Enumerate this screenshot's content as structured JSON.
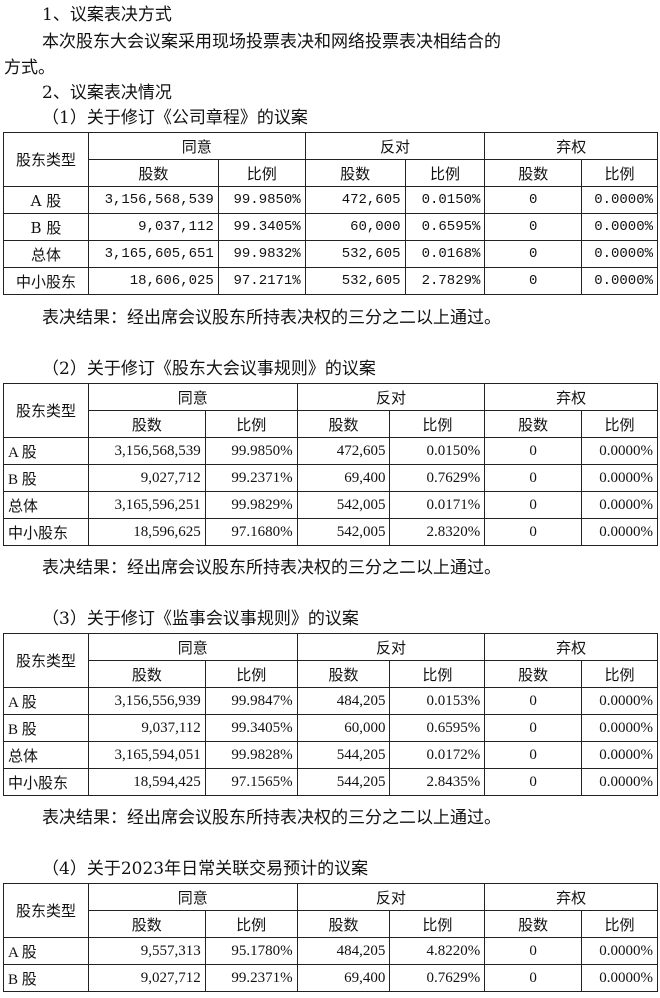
{
  "paragraphs": {
    "p1": "1、议案表决方式",
    "p2": "本次股东大会议案采用现场投票表决和网络投票表决相结合的",
    "p3": "方式。",
    "p4": "2、议案表决情况"
  },
  "header": {
    "type": "股东类型",
    "agree": "同意",
    "oppose": "反对",
    "abstain": "弃权",
    "shares": "股数",
    "ratio": "比例"
  },
  "sections": [
    {
      "title": "（1）关于修订《公司章程》的议案",
      "result": "表决结果：经出席会议股东所持表决权的三分之二以上通过。",
      "rows": [
        [
          "A 股",
          "3,156,568,539",
          "99.9850%",
          "472,605",
          "0.0150%",
          "0",
          "0.0000%"
        ],
        [
          "B 股",
          "9,037,112",
          "99.3405%",
          "60,000",
          "0.6595%",
          "0",
          "0.0000%"
        ],
        [
          "总体",
          "3,165,605,651",
          "99.9832%",
          "532,605",
          "0.0168%",
          "0",
          "0.0000%"
        ],
        [
          "中小股东",
          "18,606,025",
          "97.2171%",
          "532,605",
          "2.7829%",
          "0",
          "0.0000%"
        ]
      ]
    },
    {
      "title": "（2）关于修订《股东大会议事规则》的议案",
      "result": "表决结果：经出席会议股东所持表决权的三分之二以上通过。",
      "rows": [
        [
          "A 股",
          "3,156,568,539",
          "99.9850%",
          "472,605",
          "0.0150%",
          "0",
          "0.0000%"
        ],
        [
          "B 股",
          "9,027,712",
          "99.2371%",
          "69,400",
          "0.7629%",
          "0",
          "0.0000%"
        ],
        [
          "总体",
          "3,165,596,251",
          "99.9829%",
          "542,005",
          "0.0171%",
          "0",
          "0.0000%"
        ],
        [
          "中小股东",
          "18,596,625",
          "97.1680%",
          "542,005",
          "2.8320%",
          "0",
          "0.0000%"
        ]
      ]
    },
    {
      "title": "（3）关于修订《监事会议事规则》的议案",
      "result": "表决结果：经出席会议股东所持表决权的三分之二以上通过。",
      "rows": [
        [
          "A 股",
          "3,156,556,939",
          "99.9847%",
          "484,205",
          "0.0153%",
          "0",
          "0.0000%"
        ],
        [
          "B 股",
          "9,037,112",
          "99.3405%",
          "60,000",
          "0.6595%",
          "0",
          "0.0000%"
        ],
        [
          "总体",
          "3,165,594,051",
          "99.9828%",
          "544,205",
          "0.0172%",
          "0",
          "0.0000%"
        ],
        [
          "中小股东",
          "18,594,425",
          "97.1565%",
          "544,205",
          "2.8435%",
          "0",
          "0.0000%"
        ]
      ]
    },
    {
      "title": "（4）关于2023年日常关联交易预计的议案",
      "result": "",
      "rows": [
        [
          "A 股",
          "9,557,313",
          "95.1780%",
          "484,205",
          "4.8220%",
          "0",
          "0.0000%"
        ],
        [
          "B 股",
          "9,027,712",
          "99.2371%",
          "69,400",
          "0.7629%",
          "0",
          "0.0000%"
        ]
      ]
    }
  ]
}
